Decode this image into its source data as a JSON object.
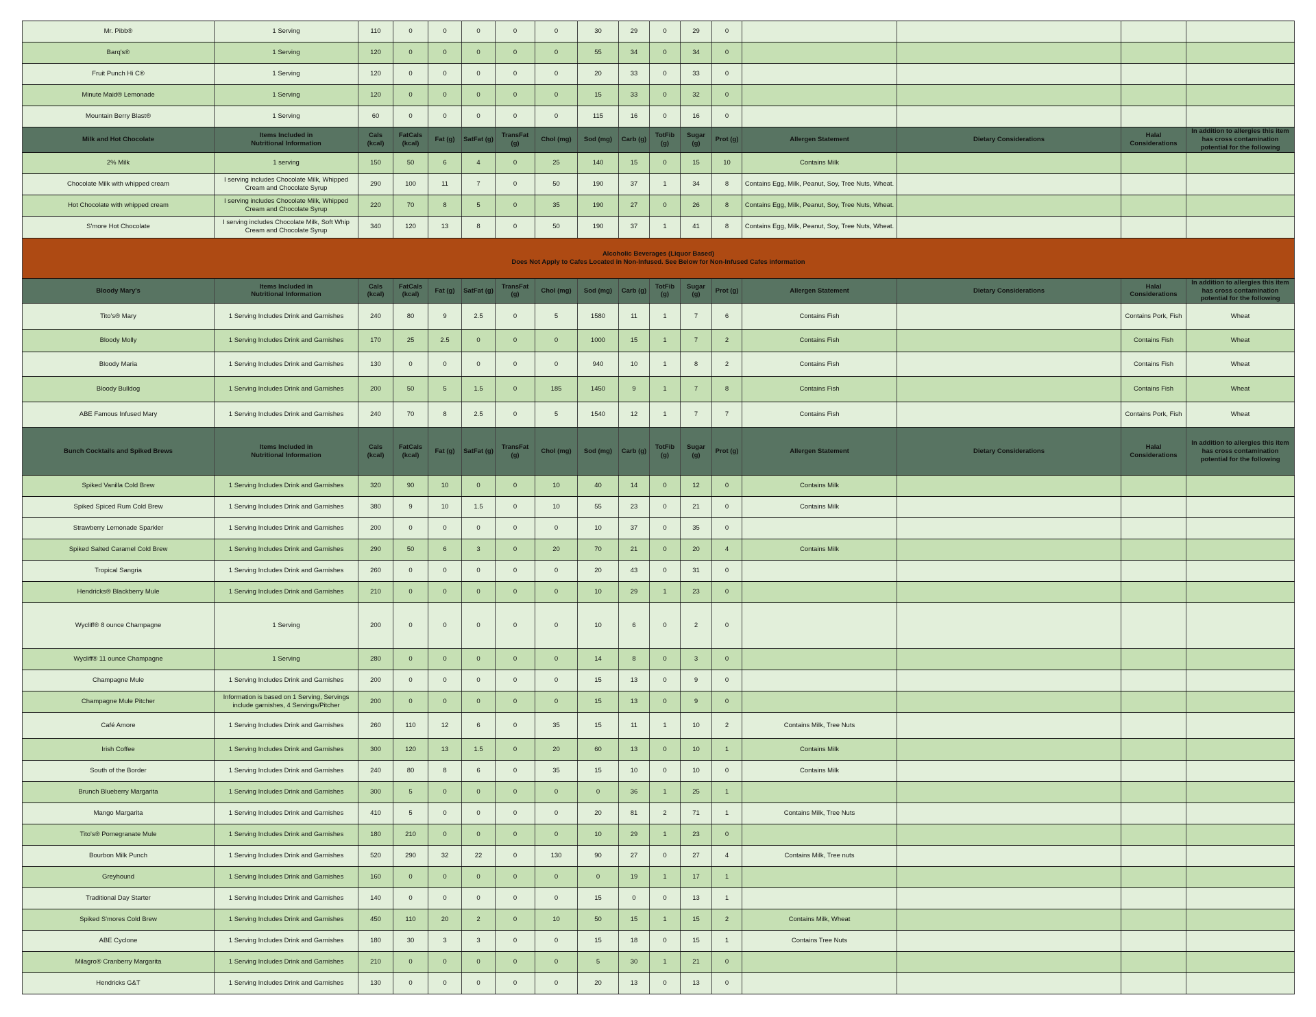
{
  "rows": [
    {
      "type": "item",
      "cells": [
        "Mr. Pibb®",
        "1 Serving",
        "110",
        "0",
        "0",
        "0",
        "0",
        "0",
        "30",
        "29",
        "0",
        "29",
        "0",
        "",
        "",
        "",
        ""
      ]
    },
    {
      "type": "item",
      "cells": [
        "Barq's®",
        "1 Serving",
        "120",
        "0",
        "0",
        "0",
        "0",
        "0",
        "55",
        "34",
        "0",
        "34",
        "0",
        "",
        "",
        "",
        ""
      ]
    },
    {
      "type": "item",
      "cells": [
        "Fruit Punch Hi C®",
        "1 Serving",
        "120",
        "0",
        "0",
        "0",
        "0",
        "0",
        "20",
        "33",
        "0",
        "33",
        "0",
        "",
        "",
        "",
        ""
      ]
    },
    {
      "type": "item",
      "cells": [
        "Minute Maid® Lemonade",
        "1 Serving",
        "120",
        "0",
        "0",
        "0",
        "0",
        "0",
        "15",
        "33",
        "0",
        "32",
        "0",
        "",
        "",
        "",
        ""
      ]
    },
    {
      "type": "item",
      "cells": [
        "Mountain Berry Blast®",
        "1 Serving",
        "60",
        "0",
        "0",
        "0",
        "0",
        "0",
        "115",
        "16",
        "0",
        "16",
        "0",
        "",
        "",
        "",
        ""
      ]
    },
    {
      "type": "header",
      "cells": [
        "Milk and Hot Chocolate",
        "Items Included in\nNutritional Information",
        "Cals (kcal)",
        "FatCals\n(kcal)",
        "Fat (g)",
        "SatFat (g)",
        "TransFat (g)",
        "Chol (mg)",
        "Sod (mg)",
        "Carb (g)",
        "TotFib\n(g)",
        "Sugar (g)",
        "Prot (g)",
        "Allergen Statement",
        "Dietary Considerations",
        "Halal\nConsiderations",
        "In addition to allergies this item has cross contamination potential for the following"
      ]
    },
    {
      "type": "item",
      "cells": [
        "2% Milk",
        "1 serving",
        "150",
        "50",
        "6",
        "4",
        "0",
        "25",
        "140",
        "15",
        "0",
        "15",
        "10",
        "Contains Milk",
        "",
        "",
        ""
      ]
    },
    {
      "type": "item",
      "cells": [
        "Chocolate Milk with whipped cream",
        "I serving includes Chocolate Milk, Whipped Cream and Chocolate Syrup",
        "290",
        "100",
        "11",
        "7",
        "0",
        "50",
        "190",
        "37",
        "1",
        "34",
        "8",
        "Contains Egg, Milk, Peanut, Soy, Tree Nuts, Wheat.",
        "",
        "",
        ""
      ]
    },
    {
      "type": "item",
      "cells": [
        "Hot Chocolate with whipped cream",
        "I serving includes Chocolate Milk, Whipped Cream and Chocolate Syrup",
        "220",
        "70",
        "8",
        "5",
        "0",
        "35",
        "190",
        "27",
        "0",
        "26",
        "8",
        "Contains Egg, Milk, Peanut, Soy, Tree Nuts, Wheat.",
        "",
        "",
        ""
      ]
    },
    {
      "type": "item",
      "cells": [
        "S'more Hot Chocolate",
        "I serving includes Chocolate Milk, Soft Whip Cream and Chocolate Syrup",
        "340",
        "120",
        "13",
        "8",
        "0",
        "50",
        "190",
        "37",
        "1",
        "41",
        "8",
        "Contains Egg, Milk, Peanut, Soy, Tree Nuts, Wheat.",
        "",
        "",
        ""
      ]
    },
    {
      "type": "banner",
      "cells": [
        "Alcoholic Beverages (Liquor Based)\nDoes Not Apply to Cafes Located in Non-Infused. See Below for Non-Infused Cafes information"
      ]
    },
    {
      "type": "header",
      "cells": [
        "Bloody Mary's",
        "Items Included in\nNutritional Information",
        "Cals (kcal)",
        "FatCals\n(kcal)",
        "Fat (g)",
        "SatFat (g)",
        "TransFat (g)",
        "Chol (mg)",
        "Sod (mg)",
        "Carb (g)",
        "TotFib\n(g)",
        "Sugar (g)",
        "Prot (g)",
        "Allergen Statement",
        "Dietary Considerations",
        "Halal\nConsiderations",
        "In addition to allergies this item has cross contamination potential for the following"
      ]
    },
    {
      "type": "item",
      "cells": [
        "Tito's® Mary",
        "1 Serving Includes Drink and Garnishes",
        "240",
        "80",
        "9",
        "2.5",
        "0",
        "5",
        "1580",
        "11",
        "1",
        "7",
        "6",
        "Contains Fish",
        "",
        "Contains Pork, Fish",
        "Wheat"
      ]
    },
    {
      "type": "item",
      "cells": [
        "Bloody Molly",
        "1 Serving Includes Drink and Garnishes",
        "170",
        "25",
        "2.5",
        "0",
        "0",
        "0",
        "1000",
        "15",
        "1",
        "7",
        "2",
        "Contains Fish",
        "",
        "Contains Fish",
        "Wheat"
      ]
    },
    {
      "type": "item",
      "cells": [
        "Bloody Maria",
        "1 Serving Includes Drink and Garnishes",
        "130",
        "0",
        "0",
        "0",
        "0",
        "0",
        "940",
        "10",
        "1",
        "8",
        "2",
        "Contains Fish",
        "",
        "Contains Fish",
        "Wheat"
      ]
    },
    {
      "type": "item",
      "cells": [
        "Bloody Bulldog",
        "1 Serving Includes Drink and Garnishes",
        "200",
        "50",
        "5",
        "1.5",
        "0",
        "185",
        "1450",
        "9",
        "1",
        "7",
        "8",
        "Contains Fish",
        "",
        "Contains Fish",
        "Wheat"
      ]
    },
    {
      "type": "item",
      "cells": [
        "ABE Famous Infused Mary",
        "1 Serving Includes Drink and Garnishes",
        "240",
        "70",
        "8",
        "2.5",
        "0",
        "5",
        "1540",
        "12",
        "1",
        "7",
        "7",
        "Contains Fish",
        "",
        "Contains Pork, Fish",
        "Wheat"
      ]
    },
    {
      "type": "header",
      "cells": [
        "Bunch Cocktails and Spiked Brews",
        "Items Included in\nNutritional Information",
        "Cals (kcal)",
        "FatCals\n(kcal)",
        "Fat (g)",
        "SatFat (g)",
        "TransFat (g)",
        "Chol (mg)",
        "Sod (mg)",
        "Carb (g)",
        "TotFib\n(g)",
        "Sugar (g)",
        "Prot (g)",
        "Allergen Statement",
        "Dietary Considerations",
        "Halal\nConsiderations",
        "In addition to allergies this item has cross contamination potential for the following"
      ]
    },
    {
      "type": "item",
      "cells": [
        "Spiked Vanilla Cold Brew",
        "1 Serving Includes Drink and Garnishes",
        "320",
        "90",
        "10",
        "0",
        "0",
        "10",
        "40",
        "14",
        "0",
        "12",
        "0",
        "Contains Milk",
        "",
        "",
        ""
      ]
    },
    {
      "type": "item",
      "cells": [
        "Spiked Spiced Rum Cold Brew",
        "1 Serving Includes Drink and Garnishes",
        "380",
        "9",
        "10",
        "1.5",
        "0",
        "10",
        "55",
        "23",
        "0",
        "21",
        "0",
        "Contains Milk",
        "",
        "",
        ""
      ]
    },
    {
      "type": "item",
      "cells": [
        "Strawberry Lemonade Sparkler",
        "1 Serving Includes Drink and Garnishes",
        "200",
        "0",
        "0",
        "0",
        "0",
        "0",
        "10",
        "37",
        "0",
        "35",
        "0",
        "",
        "",
        "",
        ""
      ]
    },
    {
      "type": "item",
      "cells": [
        "Spiked Salted Caramel Cold Brew",
        "1 Serving Includes Drink and Garnishes",
        "290",
        "50",
        "6",
        "3",
        "0",
        "20",
        "70",
        "21",
        "0",
        "20",
        "4",
        "Contains Milk",
        "",
        "",
        ""
      ]
    },
    {
      "type": "item",
      "cells": [
        "Tropical Sangria",
        "1 Serving Includes Drink and Garnishes",
        "260",
        "0",
        "0",
        "0",
        "0",
        "0",
        "20",
        "43",
        "0",
        "31",
        "0",
        "",
        "",
        "",
        ""
      ]
    },
    {
      "type": "item",
      "cells": [
        "Hendricks® Blackberry Mule",
        "1 Serving Includes Drink and Garnishes",
        "210",
        "0",
        "0",
        "0",
        "0",
        "0",
        "10",
        "29",
        "1",
        "23",
        "0",
        "",
        "",
        "",
        ""
      ]
    },
    {
      "type": "item",
      "cells": [
        "Wycliff® 8 ounce Champagne",
        "1 Serving",
        "200",
        "0",
        "0",
        "0",
        "0",
        "0",
        "10",
        "6",
        "0",
        "2",
        "0",
        "",
        "",
        "",
        ""
      ]
    },
    {
      "type": "item",
      "cells": [
        "Wycliff® 11 ounce Champagne",
        "1 Serving",
        "280",
        "0",
        "0",
        "0",
        "0",
        "0",
        "14",
        "8",
        "0",
        "3",
        "0",
        "",
        "",
        "",
        ""
      ]
    },
    {
      "type": "item",
      "cells": [
        "Champagne Mule",
        "1 Serving Includes Drink and Garnishes",
        "200",
        "0",
        "0",
        "0",
        "0",
        "0",
        "15",
        "13",
        "0",
        "9",
        "0",
        "",
        "",
        "",
        ""
      ]
    },
    {
      "type": "item",
      "cells": [
        "Champagne Mule Pitcher",
        "Information is based on 1 Serving, Servings include garnishes, 4 Servings/Pitcher",
        "200",
        "0",
        "0",
        "0",
        "0",
        "0",
        "15",
        "13",
        "0",
        "9",
        "0",
        "",
        "",
        "",
        ""
      ]
    },
    {
      "type": "item",
      "cells": [
        "Café Amore",
        "1 Serving Includes Drink and Garnishes",
        "260",
        "110",
        "12",
        "6",
        "0",
        "35",
        "15",
        "11",
        "1",
        "10",
        "2",
        "Contains Milk, Tree Nuts",
        "",
        "",
        ""
      ]
    },
    {
      "type": "item",
      "cells": [
        "Irish Coffee",
        "1 Serving Includes Drink and Garnishes",
        "300",
        "120",
        "13",
        "1.5",
        "0",
        "20",
        "60",
        "13",
        "0",
        "10",
        "1",
        "Contains Milk",
        "",
        "",
        ""
      ]
    },
    {
      "type": "item",
      "cells": [
        "South of the Border",
        "1 Serving Includes Drink and Garnishes",
        "240",
        "80",
        "8",
        "6",
        "0",
        "35",
        "15",
        "10",
        "0",
        "10",
        "0",
        "Contains Milk",
        "",
        "",
        ""
      ]
    },
    {
      "type": "item",
      "cells": [
        "Brunch Blueberry Margarita",
        "1 Serving Includes Drink and Garnishes",
        "300",
        "5",
        "0",
        "0",
        "0",
        "0",
        "0",
        "36",
        "1",
        "25",
        "1",
        "",
        "",
        "",
        ""
      ]
    },
    {
      "type": "item",
      "cells": [
        "Mango Margarita",
        "1 Serving Includes Drink and Garnishes",
        "410",
        "5",
        "0",
        "0",
        "0",
        "0",
        "20",
        "81",
        "2",
        "71",
        "1",
        "Contains Milk, Tree Nuts",
        "",
        "",
        ""
      ]
    },
    {
      "type": "item",
      "cells": [
        "Tito's® Pomegranate Mule",
        "1 Serving Includes Drink and Garnishes",
        "180",
        "210",
        "0",
        "0",
        "0",
        "0",
        "10",
        "29",
        "1",
        "23",
        "0",
        "",
        "",
        "",
        ""
      ]
    },
    {
      "type": "item",
      "cells": [
        "Bourbon Milk Punch",
        "1 Serving Includes Drink and Garnishes",
        "520",
        "290",
        "32",
        "22",
        "0",
        "130",
        "90",
        "27",
        "0",
        "27",
        "4",
        "Contains Milk, Tree nuts",
        "",
        "",
        ""
      ]
    },
    {
      "type": "item",
      "cells": [
        "Greyhound",
        "1 Serving Includes Drink and Garnishes",
        "160",
        "0",
        "0",
        "0",
        "0",
        "0",
        "0",
        "19",
        "1",
        "17",
        "1",
        "",
        "",
        "",
        ""
      ]
    },
    {
      "type": "item",
      "cells": [
        "Traditional Day Starter",
        "1 Serving Includes Drink and Garnishes",
        "140",
        "0",
        "0",
        "0",
        "0",
        "0",
        "15",
        "0",
        "0",
        "13",
        "1",
        "",
        "",
        "",
        ""
      ]
    },
    {
      "type": "item",
      "cells": [
        "Spiked S'mores Cold Brew",
        "1 Serving Includes Drink and Garnishes",
        "450",
        "110",
        "20",
        "2",
        "0",
        "10",
        "50",
        "15",
        "1",
        "15",
        "2",
        "Contains Milk, Wheat",
        "",
        "",
        ""
      ]
    },
    {
      "type": "item",
      "cells": [
        "ABE Cyclone",
        "1 Serving Includes Drink and Garnishes",
        "180",
        "30",
        "3",
        "3",
        "0",
        "0",
        "15",
        "18",
        "0",
        "15",
        "1",
        "Contains Tree Nuts",
        "",
        "",
        ""
      ]
    },
    {
      "type": "item",
      "cells": [
        "Milagro® Cranberry Margarita",
        "1 Serving Includes Drink and Garnishes",
        "210",
        "0",
        "0",
        "0",
        "0",
        "0",
        "5",
        "30",
        "1",
        "21",
        "0",
        "",
        "",
        "",
        ""
      ]
    },
    {
      "type": "item",
      "cells": [
        "Hendricks G&T",
        "1 Serving Includes Drink and Garnishes",
        "130",
        "0",
        "0",
        "0",
        "0",
        "0",
        "20",
        "13",
        "0",
        "13",
        "0",
        "",
        "",
        "",
        ""
      ]
    }
  ],
  "colors": {
    "row_light": "#e2efda",
    "row_dark": "#c6e0b4",
    "header": "#587462",
    "banner": "#ae4a13"
  }
}
